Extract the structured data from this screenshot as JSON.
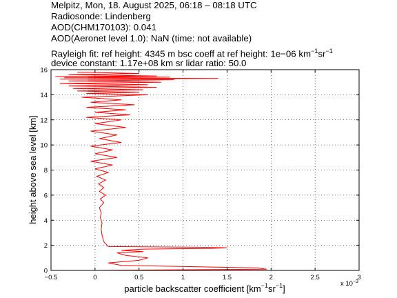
{
  "header": {
    "line1": "Melpitz, Mon, 18. August 2025, 06:18 – 08:18 UTC",
    "line2": "Radiosonde: Lindenberg",
    "line3": "AOD(CHM170103): 0.041",
    "line4": "AOD(Aeronet level 1.0): NaN   (time: not available)",
    "line5_a": "Rayleigh fit:     ref height: 4345 m     bsc coeff at ref height: 1e−06 km",
    "line5_sup1": "−1",
    "line5_b": "sr",
    "line5_sup2": "−1",
    "line6": "device constant: 1.17e+08 km sr     lidar ratio: 50.0"
  },
  "chart_data": {
    "type": "line",
    "xlabel_base": "particle backscatter coefficient [km",
    "xlabel_sup1": "−1",
    "xlabel_mid": "sr",
    "xlabel_sup2": "−1",
    "xlabel_end": "]",
    "ylabel": "height above sea level [km]",
    "x_exponent_label": "x 10",
    "x_exponent_power": "−3",
    "xlim": [
      -0.5,
      3
    ],
    "ylim": [
      0,
      16
    ],
    "xticks": [
      -0.5,
      0,
      0.5,
      1,
      1.5,
      2,
      2.5,
      3
    ],
    "xtick_labels": [
      "−0.5",
      "0",
      "0.5",
      "1",
      "1.5",
      "2",
      "2.5",
      "3"
    ],
    "yticks": [
      0,
      2,
      4,
      6,
      8,
      10,
      12,
      14,
      16
    ],
    "ytick_labels": [
      "0",
      "2",
      "4",
      "6",
      "8",
      "10",
      "12",
      "14",
      "16"
    ],
    "grid": true,
    "series": [
      {
        "color": "#ff0000",
        "x": [
          0.0,
          1.95,
          1.85,
          0.3,
          0.15,
          0.5,
          0.6,
          0.35,
          0.25,
          0.55,
          0.3,
          0.55,
          1.3,
          1.5,
          1.2,
          0.15,
          0.1,
          0.08,
          0.07,
          0.08,
          0.06,
          0.07,
          0.05,
          0.1,
          0.06,
          0.12,
          0.05,
          0.1,
          0.04,
          0.12,
          0.02,
          0.15,
          0.0,
          0.2,
          -0.05,
          0.25,
          0.0,
          0.2,
          -0.05,
          0.3,
          0.05,
          0.25,
          -0.05,
          0.35,
          0.0,
          0.3,
          -0.1,
          0.4,
          0.0,
          0.35,
          -0.1,
          0.45,
          -0.05,
          0.3,
          -0.15,
          0.6,
          -0.1,
          0.5,
          -0.2,
          0.55,
          -0.25,
          0.7,
          -0.3,
          0.6,
          -0.4,
          0.75,
          -0.3,
          0.9,
          -0.4,
          1.4,
          -0.35,
          0.85,
          -0.45,
          0.7,
          -0.3,
          0.5,
          -0.2
        ],
        "y": [
          0.0,
          0.1,
          0.2,
          0.4,
          0.6,
          0.8,
          1.0,
          1.2,
          1.4,
          1.5,
          1.6,
          1.7,
          1.75,
          1.8,
          1.85,
          1.9,
          2.3,
          2.8,
          3.3,
          3.8,
          4.2,
          4.6,
          5.0,
          5.4,
          5.7,
          6.0,
          6.3,
          6.6,
          6.9,
          7.2,
          7.5,
          7.8,
          8.1,
          8.4,
          8.7,
          9.0,
          9.3,
          9.6,
          9.9,
          10.2,
          10.5,
          10.8,
          11.1,
          11.4,
          11.7,
          12.0,
          12.2,
          12.4,
          12.6,
          12.8,
          13.0,
          13.2,
          13.4,
          13.6,
          13.8,
          14.0,
          14.1,
          14.2,
          14.3,
          14.4,
          14.5,
          14.6,
          14.7,
          14.8,
          14.9,
          15.0,
          15.1,
          15.2,
          15.25,
          15.3,
          15.35,
          15.4,
          15.45,
          15.5,
          15.6,
          15.7,
          15.8
        ]
      }
    ]
  }
}
